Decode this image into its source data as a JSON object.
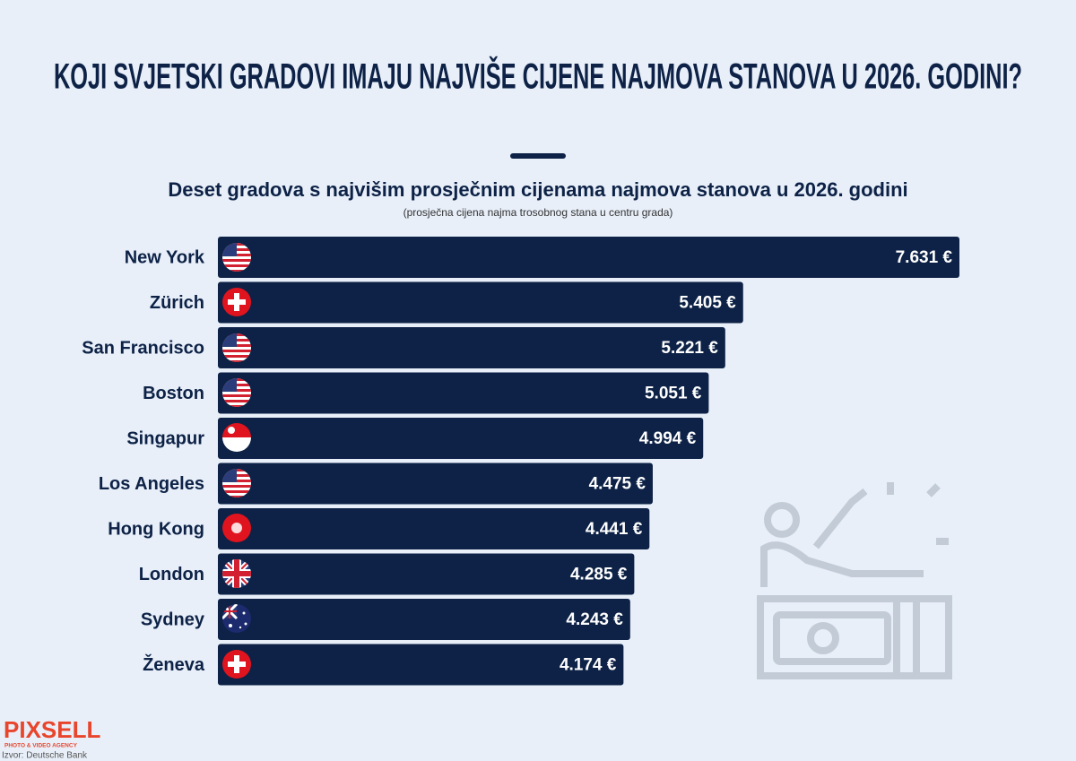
{
  "chart_data": {
    "type": "bar",
    "orientation": "horizontal",
    "title": "KOJI SVJETSKI GRADOVI IMAJU NAJVIŠE CIJENE NAJMOVA STANOVA U 2026. GODINI?",
    "subtitle": "Deset gradova s najvišim prosječnim cijenama najmova stanova u 2026. godini",
    "note": "(prosječna cijena najma trosobnog stana u centru grada)",
    "categories": [
      "New York",
      "Zürich",
      "San Francisco",
      "Boston",
      "Singapur",
      "Los Angeles",
      "Hong Kong",
      "London",
      "Sydney",
      "Ženeva"
    ],
    "values": [
      7631,
      5405,
      5221,
      5051,
      4994,
      4475,
      4441,
      4285,
      4243,
      4174
    ],
    "value_labels": [
      "7.631 €",
      "5.405 €",
      "5.221 €",
      "5.051 €",
      "4.994 €",
      "4.475 €",
      "4.441 €",
      "4.285 €",
      "4.243 €",
      "4.174 €"
    ],
    "color": "#0d2246",
    "logo": "PIXSELL",
    "logo_tagline": "PHOTO & VIDEO AGENCY",
    "source": "Izvor: Deutsche Bank"
  }
}
